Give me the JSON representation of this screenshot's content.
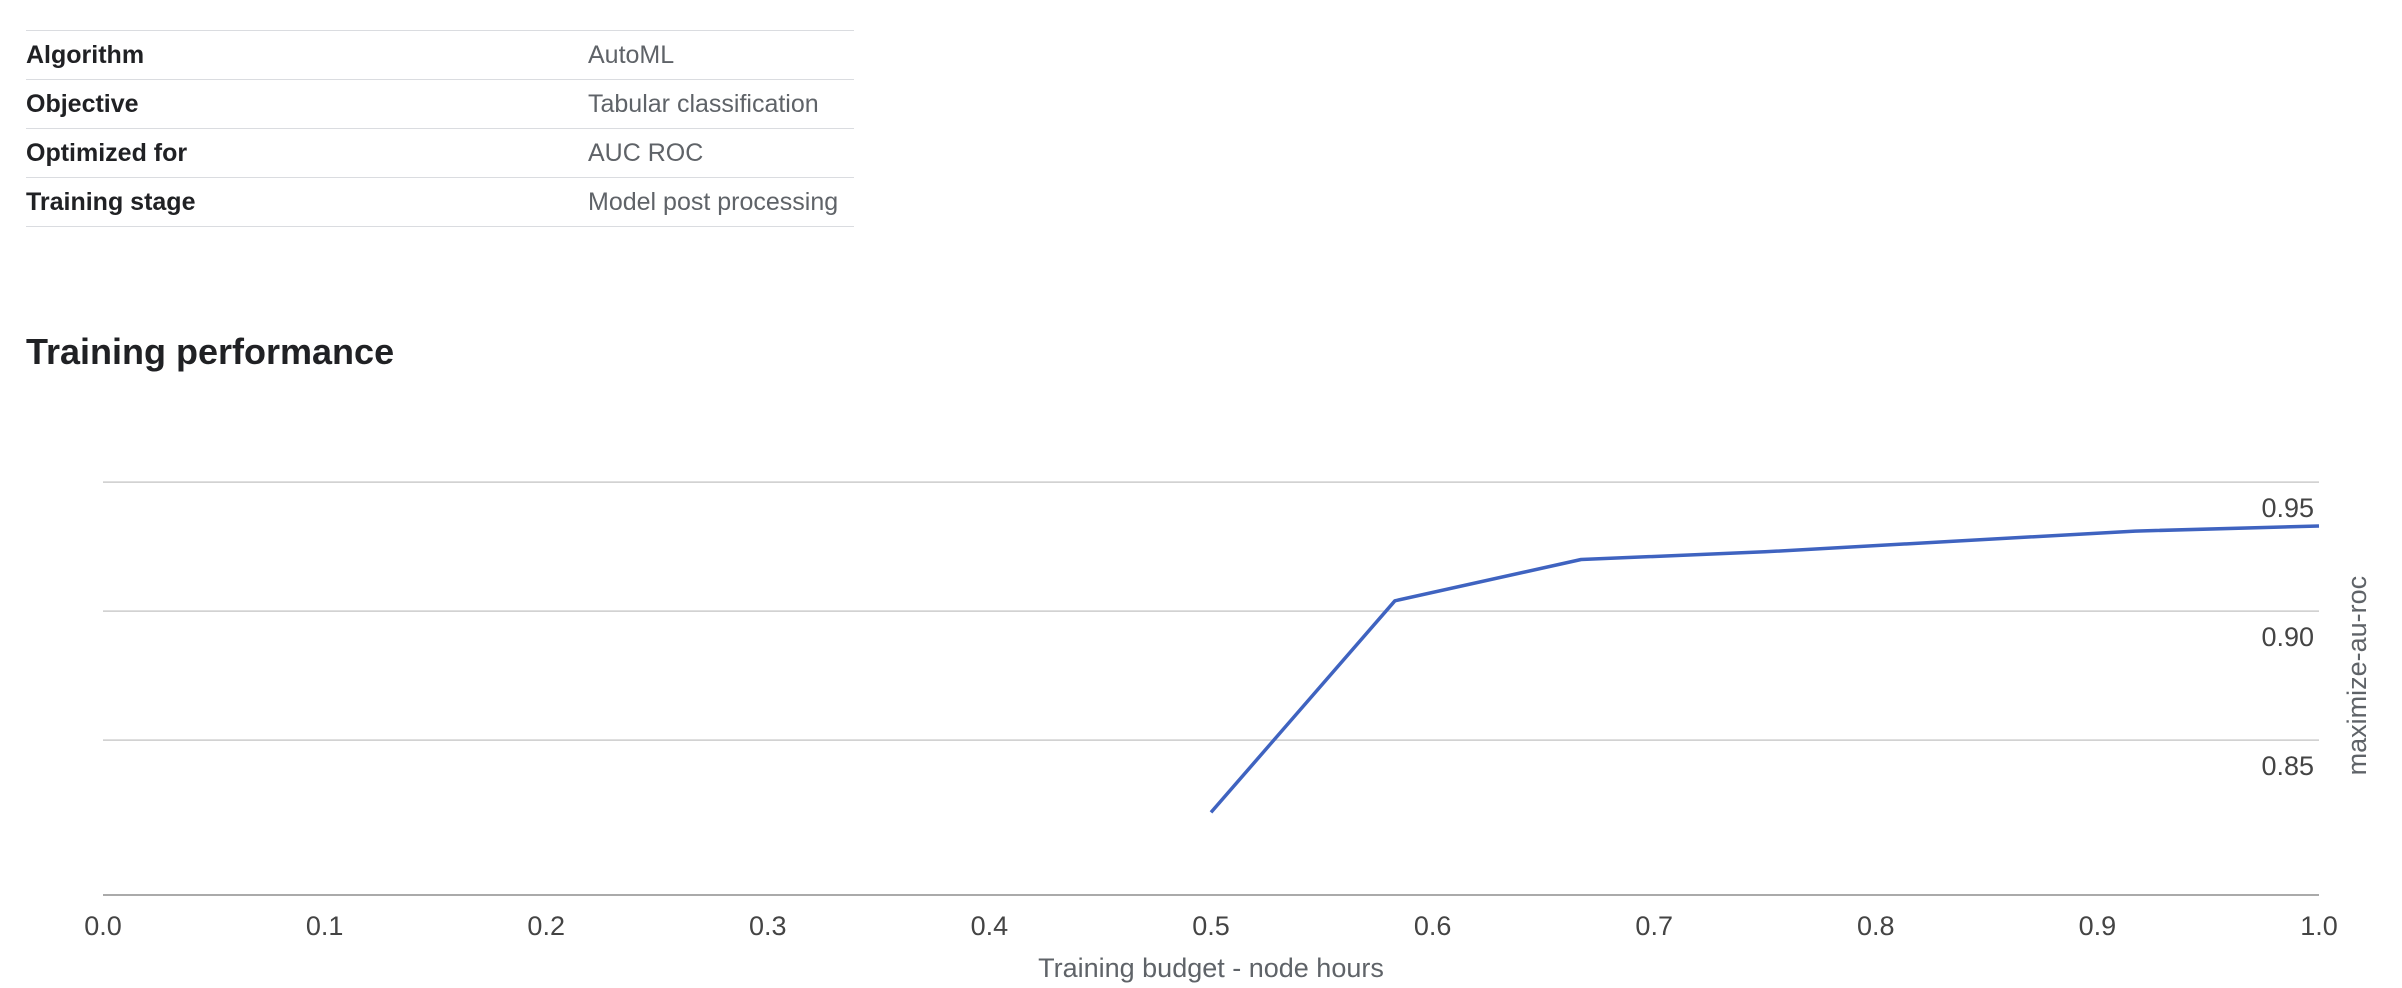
{
  "properties": [
    {
      "label": "Algorithm",
      "value": "AutoML"
    },
    {
      "label": "Objective",
      "value": "Tabular classification"
    },
    {
      "label": "Optimized for",
      "value": "AUC ROC"
    },
    {
      "label": "Training stage",
      "value": "Model post processing"
    }
  ],
  "section_title": "Training performance",
  "colors": {
    "line": "#3f63c0",
    "grid": "#cccccc",
    "axis": "#aaaaaa"
  },
  "chart_data": {
    "type": "line",
    "xlabel": "Training budget - node hours",
    "ylabel": "maximize-au-roc",
    "xlim": [
      0.0,
      1.0
    ],
    "ylim": [
      0.8,
      0.955
    ],
    "x_ticks": [
      "0.0",
      "0.1",
      "0.2",
      "0.3",
      "0.4",
      "0.5",
      "0.6",
      "0.7",
      "0.8",
      "0.9",
      "1.0"
    ],
    "y_ticks": [
      "0.85",
      "0.90",
      "0.95"
    ],
    "legend": "none",
    "grid": true,
    "series": [
      {
        "x": [
          0.5,
          0.583,
          0.667,
          0.75,
          0.833,
          0.917,
          1.0
        ],
        "y": [
          0.832,
          0.914,
          0.93,
          0.933,
          0.937,
          0.941,
          0.943
        ]
      }
    ]
  }
}
